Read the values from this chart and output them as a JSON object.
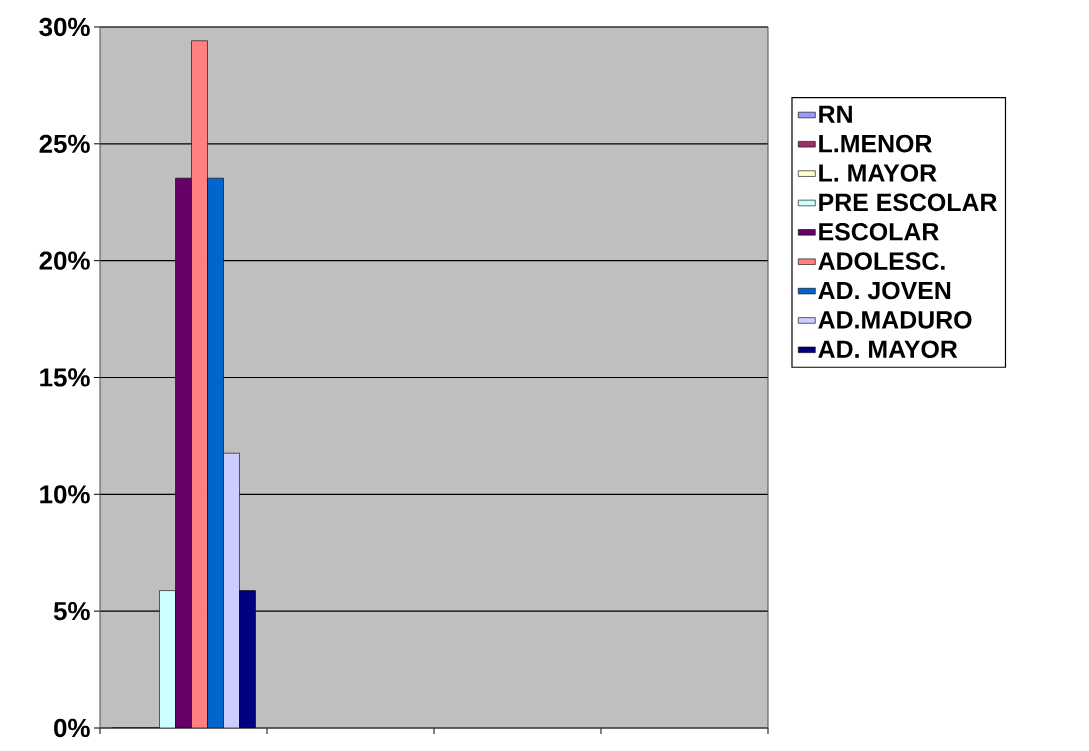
{
  "chart_data": {
    "type": "bar",
    "categories": [
      null,
      null,
      null,
      null
    ],
    "series": [
      {
        "name": "RN",
        "color": "#9999ff",
        "values": [
          0,
          null,
          null,
          null
        ]
      },
      {
        "name": "L.MENOR",
        "color": "#993366",
        "values": [
          0,
          null,
          null,
          null
        ]
      },
      {
        "name": "L. MAYOR",
        "color": "#ffffcc",
        "values": [
          0,
          null,
          null,
          null
        ]
      },
      {
        "name": "PRE ESCOLAR",
        "color": "#ccffff",
        "values": [
          5.88,
          null,
          null,
          null
        ]
      },
      {
        "name": "ESCOLAR",
        "color": "#660066",
        "values": [
          23.53,
          null,
          null,
          null
        ]
      },
      {
        "name": "ADOLESC.",
        "color": "#ff8080",
        "values": [
          29.41,
          null,
          null,
          null
        ]
      },
      {
        "name": "AD. JOVEN",
        "color": "#0066cc",
        "values": [
          23.53,
          null,
          null,
          null
        ]
      },
      {
        "name": "AD.MADURO",
        "color": "#ccccff",
        "values": [
          11.76,
          null,
          null,
          null
        ]
      },
      {
        "name": "AD. MAYOR",
        "color": "#000080",
        "values": [
          5.88,
          null,
          null,
          null
        ]
      }
    ],
    "ylim": [
      0,
      30
    ],
    "yticks": [
      {
        "value": 0,
        "label": "0%"
      },
      {
        "value": 5,
        "label": "5%"
      },
      {
        "value": 10,
        "label": "10%"
      },
      {
        "value": 15,
        "label": "15%"
      },
      {
        "value": 20,
        "label": "20%"
      },
      {
        "value": 25,
        "label": "25%"
      },
      {
        "value": 30,
        "label": "30%"
      }
    ],
    "grid": "y",
    "legend": "right",
    "tick_labels": "y"
  }
}
